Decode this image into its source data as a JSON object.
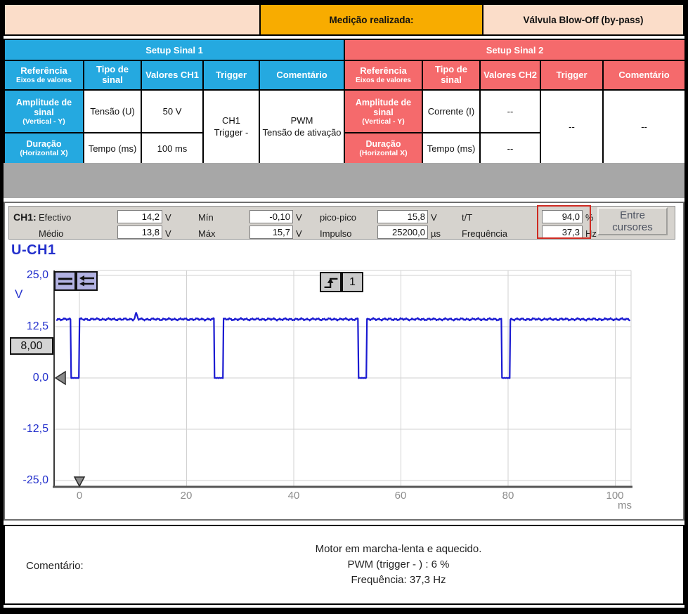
{
  "header": {
    "measurement_label": "Medição realizada:",
    "measurement_value": "Válvula Blow-Off (by-pass)"
  },
  "setup1": {
    "title": "Setup Sinal 1",
    "col_ref_main": "Referência",
    "col_ref_sub": "Eixos de valores",
    "col_tipo": "Tipo de sinal",
    "col_valores": "Valores CH1",
    "col_trigger": "Trigger",
    "col_comentario": "Comentário",
    "row1_ref_main": "Amplitude de sinal",
    "row1_ref_sub": "(Vertical - Y)",
    "row1_tipo": "Tensão (U)",
    "row1_valor": "50 V",
    "row2_ref_main": "Duração",
    "row2_ref_sub": "(Horizontal X)",
    "row2_tipo": "Tempo (ms)",
    "row2_valor": "100 ms",
    "trigger_l1": "CH1",
    "trigger_l2": "Trigger -",
    "comentario_l1": "PWM",
    "comentario_l2": "Tensão de ativação"
  },
  "setup2": {
    "title": "Setup Sinal 2",
    "col_ref_main": "Referência",
    "col_ref_sub": "Eixos de valores",
    "col_tipo": "Tipo de sinal",
    "col_valores": "Valores CH2",
    "col_trigger": "Trigger",
    "col_comentario": "Comentário",
    "row1_ref_main": "Amplitude de sinal",
    "row1_ref_sub": "(Vertical - Y)",
    "row1_tipo": "Corrente (I)",
    "row1_valor": "--",
    "row2_ref_main": "Duração",
    "row2_ref_sub": "(Horizontal X)",
    "row2_tipo": "Tempo (ms)",
    "row2_valor": "--",
    "trigger_value": "--",
    "comentario_value": "--"
  },
  "measurements": {
    "channel": "CH1:",
    "efectivo_label": "Efectivo",
    "efectivo_value": "14,2",
    "efectivo_unit": "V",
    "medio_label": "Médio",
    "medio_value": "13,8",
    "medio_unit": "V",
    "min_label": "Mín",
    "min_value": "-0,10",
    "min_unit": "V",
    "max_label": "Máx",
    "max_value": "15,7",
    "max_unit": "V",
    "picopico_label": "pico-pico",
    "picopico_value": "15,8",
    "picopico_unit": "V",
    "impulso_label": "Impulso",
    "impulso_value": "25200,0",
    "impulso_unit": "µs",
    "tt_label": "t/T",
    "tt_value": "94,0",
    "tt_unit": "%",
    "freq_label": "Frequência",
    "freq_value": "37,3",
    "freq_unit": "Hz",
    "cursors_button": "Entre cursores"
  },
  "scope": {
    "trace_label": "U-CH1",
    "y_unit": "V",
    "y_ticks": [
      "25,0",
      "12,5",
      "0,0",
      "-12,5",
      "-25,0"
    ],
    "trigger_level_value": "8,00",
    "trigger_channel": "1",
    "x_ticks": [
      "0",
      "20",
      "40",
      "60",
      "80",
      "100"
    ],
    "x_unit": "ms"
  },
  "chart_data": {
    "type": "line",
    "title": "U-CH1",
    "xlabel": "ms",
    "ylabel": "V",
    "xlim": [
      -4.3,
      103
    ],
    "ylim": [
      -25,
      25
    ],
    "x_ticks": [
      0,
      20,
      40,
      60,
      80,
      100
    ],
    "y_ticks": [
      25.0,
      12.5,
      0.0,
      -12.5,
      -25.0
    ],
    "grid": true,
    "legend": "none",
    "series_name": "CH1 PWM activation voltage",
    "signal": {
      "shape": "pwm",
      "high_v": 14.3,
      "low_v": 0.0,
      "period_ms": 26.8,
      "low_fraction": 0.06,
      "rise_times_ms": [
        0,
        26.8,
        53.6,
        80.4
      ],
      "glitch": {
        "t_ms": 10.6,
        "peak_v": 15.7
      },
      "t_start_ms": -4.3,
      "t_end_ms": 102.8,
      "noise_vpp": 0.4
    },
    "trigger_level_v": 8.0,
    "trigger_time_ms": 0,
    "ground_level_v": 0.0,
    "measured": {
      "efectivo_v": 14.2,
      "medio_v": 13.8,
      "min_v": -0.1,
      "max_v": 15.7,
      "pico_pico_v": 15.8,
      "impulso_us": 25200.0,
      "t_T_pct": 94.0,
      "frequencia_hz": 37.3
    }
  },
  "comment": {
    "label": "Comentário:",
    "line1": "Motor em marcha-lenta e aquecido.",
    "line2": "PWM (trigger - ) : 6 %",
    "line3": "Frequência: 37,3 Hz"
  }
}
